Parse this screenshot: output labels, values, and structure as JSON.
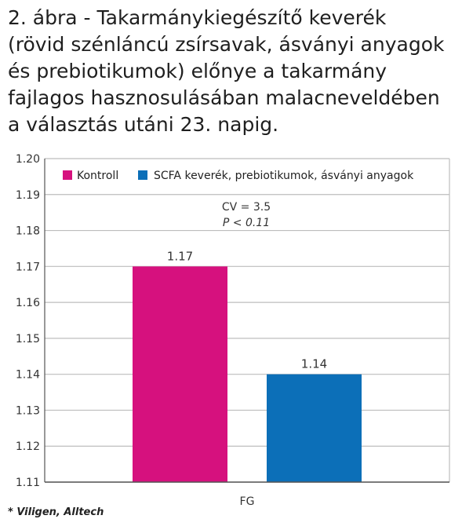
{
  "title_lines": [
    "2. ábra - Takarmánykiegészítő keverék",
    "(rövid szénláncú zsírsavak, ásványi anyagok",
    "és prebiotikumok) előnye a takarmány",
    "fajlagos hasznosulásában malacneveldében",
    "a választás utáni 23. napig."
  ],
  "source": "* Viligen, Alltech",
  "chart_data": {
    "type": "bar",
    "categories": [
      "FG"
    ],
    "series": [
      {
        "name": "Kontroll",
        "values": [
          1.17
        ],
        "color": "#d6117e"
      },
      {
        "name": "SCFA keverék, prebiotikumok, ásványi anyagok",
        "values": [
          1.14
        ],
        "color": "#0c6fb8"
      }
    ],
    "data_labels": [
      "1.17",
      "1.14"
    ],
    "ylim": [
      1.11,
      1.2
    ],
    "yticks": [
      "1.20",
      "1.19",
      "1.18",
      "1.17",
      "1.16",
      "1.15",
      "1.14",
      "1.13",
      "1.12",
      "1.11"
    ],
    "grid": true,
    "legend": "top",
    "annotations": [
      "CV = 3.5",
      "P < 0.11"
    ]
  }
}
